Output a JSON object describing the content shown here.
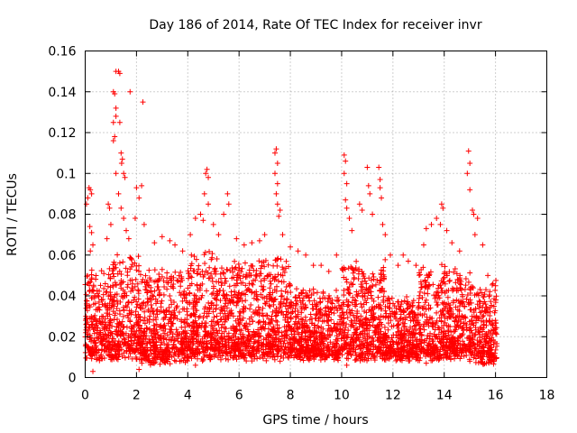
{
  "chart_data": {
    "type": "scatter",
    "title": "Day 186 of 2014, Rate Of TEC Index for receiver invr",
    "xlabel": "GPS time / hours",
    "ylabel": "ROTI / TECUs",
    "xlim": [
      0,
      18
    ],
    "ylim": [
      0,
      0.16
    ],
    "xticks": [
      0,
      2,
      4,
      6,
      8,
      10,
      12,
      14,
      16,
      18
    ],
    "yticks": [
      0,
      0.02,
      0.04,
      0.06,
      0.08,
      0.1,
      0.12,
      0.14,
      0.16
    ],
    "ytick_labels": [
      "0",
      "0.02",
      "0.04",
      "0.06",
      "0.08",
      "0.1",
      "0.12",
      "0.14",
      "0.16"
    ],
    "grid": true,
    "marker": "plus",
    "color": "#ff0000",
    "data_x_range": [
      0,
      16.05
    ],
    "series": [
      {
        "name": "ROTI",
        "points": [
          [
            0.05,
            0.085
          ],
          [
            0.1,
            0.088
          ],
          [
            0.15,
            0.093
          ],
          [
            0.2,
            0.092
          ],
          [
            0.25,
            0.09
          ],
          [
            0.18,
            0.074
          ],
          [
            0.25,
            0.071
          ],
          [
            0.2,
            0.062
          ],
          [
            0.3,
            0.065
          ],
          [
            0.3,
            0.003
          ],
          [
            0.02,
            0.028
          ],
          [
            0.03,
            0.03
          ],
          [
            0.9,
            0.085
          ],
          [
            0.95,
            0.083
          ],
          [
            1.0,
            0.075
          ],
          [
            0.85,
            0.068
          ],
          [
            1.1,
            0.116
          ],
          [
            1.15,
            0.118
          ],
          [
            1.1,
            0.125
          ],
          [
            1.2,
            0.128
          ],
          [
            1.1,
            0.14
          ],
          [
            1.15,
            0.139
          ],
          [
            1.2,
            0.132
          ],
          [
            1.2,
            0.15
          ],
          [
            1.3,
            0.15
          ],
          [
            1.35,
            0.149
          ],
          [
            1.35,
            0.125
          ],
          [
            1.4,
            0.11
          ],
          [
            1.45,
            0.107
          ],
          [
            1.42,
            0.105
          ],
          [
            1.5,
            0.1
          ],
          [
            1.55,
            0.098
          ],
          [
            1.2,
            0.1
          ],
          [
            1.3,
            0.09
          ],
          [
            1.4,
            0.083
          ],
          [
            1.5,
            0.078
          ],
          [
            1.6,
            0.072
          ],
          [
            1.7,
            0.068
          ],
          [
            1.75,
            0.14
          ],
          [
            2.25,
            0.135
          ],
          [
            2.0,
            0.093
          ],
          [
            2.1,
            0.088
          ],
          [
            2.2,
            0.094
          ],
          [
            1.95,
            0.078
          ],
          [
            2.3,
            0.075
          ],
          [
            2.7,
            0.066
          ],
          [
            3.0,
            0.069
          ],
          [
            3.3,
            0.067
          ],
          [
            3.5,
            0.065
          ],
          [
            3.8,
            0.062
          ],
          [
            4.1,
            0.07
          ],
          [
            4.3,
            0.078
          ],
          [
            4.5,
            0.08
          ],
          [
            4.6,
            0.077
          ],
          [
            4.7,
            0.1
          ],
          [
            4.75,
            0.102
          ],
          [
            4.8,
            0.098
          ],
          [
            4.65,
            0.09
          ],
          [
            4.8,
            0.085
          ],
          [
            5.0,
            0.075
          ],
          [
            5.2,
            0.07
          ],
          [
            5.4,
            0.08
          ],
          [
            5.55,
            0.09
          ],
          [
            5.6,
            0.085
          ],
          [
            5.9,
            0.068
          ],
          [
            6.2,
            0.065
          ],
          [
            6.5,
            0.066
          ],
          [
            6.8,
            0.067
          ],
          [
            7.0,
            0.07
          ],
          [
            7.4,
            0.11
          ],
          [
            7.45,
            0.112
          ],
          [
            7.5,
            0.105
          ],
          [
            7.4,
            0.1
          ],
          [
            7.5,
            0.095
          ],
          [
            7.45,
            0.09
          ],
          [
            7.5,
            0.085
          ],
          [
            7.6,
            0.082
          ],
          [
            7.55,
            0.079
          ],
          [
            7.7,
            0.07
          ],
          [
            8.0,
            0.064
          ],
          [
            8.3,
            0.062
          ],
          [
            8.6,
            0.06
          ],
          [
            8.9,
            0.055
          ],
          [
            9.2,
            0.055
          ],
          [
            9.5,
            0.052
          ],
          [
            9.8,
            0.06
          ],
          [
            10.1,
            0.109
          ],
          [
            10.15,
            0.106
          ],
          [
            10.1,
            0.1
          ],
          [
            10.2,
            0.095
          ],
          [
            10.15,
            0.087
          ],
          [
            10.2,
            0.083
          ],
          [
            10.3,
            0.078
          ],
          [
            10.4,
            0.072
          ],
          [
            10.7,
            0.085
          ],
          [
            10.8,
            0.082
          ],
          [
            11.0,
            0.103
          ],
          [
            11.05,
            0.094
          ],
          [
            11.1,
            0.09
          ],
          [
            11.2,
            0.08
          ],
          [
            11.45,
            0.103
          ],
          [
            11.5,
            0.097
          ],
          [
            11.5,
            0.093
          ],
          [
            11.55,
            0.088
          ],
          [
            11.6,
            0.075
          ],
          [
            11.7,
            0.07
          ],
          [
            11.9,
            0.06
          ],
          [
            12.2,
            0.055
          ],
          [
            12.4,
            0.06
          ],
          [
            12.6,
            0.057
          ],
          [
            12.9,
            0.055
          ],
          [
            13.2,
            0.065
          ],
          [
            13.3,
            0.073
          ],
          [
            13.5,
            0.075
          ],
          [
            13.7,
            0.078
          ],
          [
            13.85,
            0.075
          ],
          [
            13.9,
            0.085
          ],
          [
            13.95,
            0.083
          ],
          [
            14.1,
            0.072
          ],
          [
            14.3,
            0.066
          ],
          [
            14.6,
            0.062
          ],
          [
            14.95,
            0.111
          ],
          [
            15.0,
            0.105
          ],
          [
            14.9,
            0.1
          ],
          [
            15.0,
            0.092
          ],
          [
            15.1,
            0.082
          ],
          [
            15.15,
            0.08
          ],
          [
            15.3,
            0.078
          ],
          [
            15.2,
            0.07
          ],
          [
            15.5,
            0.065
          ],
          [
            15.7,
            0.05
          ],
          [
            15.9,
            0.046
          ],
          [
            16.0,
            0.045
          ],
          [
            16.0,
            0.028
          ],
          [
            15.95,
            0.01
          ],
          [
            2.1,
            0.004
          ],
          [
            4.3,
            0.006
          ],
          [
            7.6,
            0.008
          ],
          [
            10.2,
            0.006
          ],
          [
            13.3,
            0.007
          ],
          [
            15.0,
            0.008
          ]
        ]
      }
    ],
    "dense_band": [
      {
        "x": [
          0.0,
          1.0
        ],
        "y": [
          0.008,
          0.055
        ]
      },
      {
        "x": [
          1.0,
          2.2
        ],
        "y": [
          0.008,
          0.065
        ]
      },
      {
        "x": [
          2.2,
          4.0
        ],
        "y": [
          0.006,
          0.055
        ]
      },
      {
        "x": [
          4.0,
          5.0
        ],
        "y": [
          0.008,
          0.065
        ]
      },
      {
        "x": [
          5.0,
          7.2
        ],
        "y": [
          0.008,
          0.06
        ]
      },
      {
        "x": [
          7.2,
          8.0
        ],
        "y": [
          0.008,
          0.062
        ]
      },
      {
        "x": [
          8.0,
          10.0
        ],
        "y": [
          0.008,
          0.045
        ]
      },
      {
        "x": [
          10.0,
          11.7
        ],
        "y": [
          0.008,
          0.06
        ]
      },
      {
        "x": [
          11.7,
          13.0
        ],
        "y": [
          0.008,
          0.04
        ]
      },
      {
        "x": [
          13.0,
          14.2
        ],
        "y": [
          0.008,
          0.058
        ]
      },
      {
        "x": [
          14.2,
          15.2
        ],
        "y": [
          0.008,
          0.055
        ]
      },
      {
        "x": [
          15.2,
          16.05
        ],
        "y": [
          0.006,
          0.048
        ]
      }
    ]
  }
}
